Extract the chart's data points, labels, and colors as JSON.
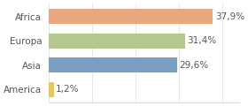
{
  "categories": [
    "America",
    "Asia",
    "Europa",
    "Africa"
  ],
  "values": [
    1.2,
    29.6,
    31.4,
    37.9
  ],
  "bar_colors": [
    "#e8c84e",
    "#7a9fc2",
    "#b5c98e",
    "#e8a97e"
  ],
  "labels": [
    "1,2%",
    "29,6%",
    "31,4%",
    "37,9%"
  ],
  "xlim": [
    0,
    44
  ],
  "background_color": "#ffffff",
  "bar_height": 0.62,
  "label_fontsize": 7.5,
  "ytick_fontsize": 7.5
}
